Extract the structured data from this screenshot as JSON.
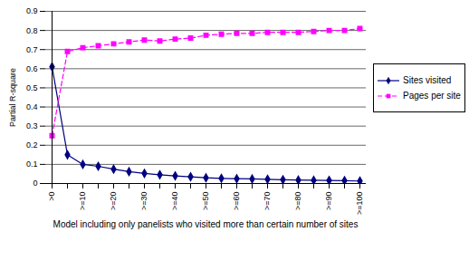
{
  "chart_data": {
    "type": "line",
    "x_label": "Model including only panelists who visited more than certain number of sites",
    "y_label": "Partial R-square",
    "categories": [
      ">0",
      null,
      ">=10",
      null,
      ">=20",
      null,
      ">=30",
      null,
      ">=40",
      null,
      ">=50",
      null,
      ">=60",
      null,
      ">=70",
      null,
      ">=80",
      null,
      ">=90",
      null,
      ">=100"
    ],
    "series": [
      {
        "name": "Sites visited",
        "color": "#000080",
        "marker": "diamond",
        "line_style": "solid",
        "values": [
          0.61,
          0.15,
          0.1,
          0.09,
          0.075,
          0.062,
          0.053,
          0.046,
          0.04,
          0.035,
          0.03,
          0.027,
          0.025,
          0.024,
          0.022,
          0.02,
          0.018,
          0.017,
          0.016,
          0.015,
          0.013
        ]
      },
      {
        "name": "Pages per site",
        "color": "#ff00ff",
        "marker": "square",
        "line_style": "dashed",
        "values": [
          0.25,
          0.69,
          0.71,
          0.72,
          0.73,
          0.74,
          0.75,
          0.745,
          0.755,
          0.76,
          0.775,
          0.78,
          0.785,
          0.785,
          0.79,
          0.79,
          0.79,
          0.795,
          0.8,
          0.8,
          0.81
        ]
      }
    ],
    "ylim": [
      0,
      0.9
    ],
    "yticks": [
      0,
      0.1,
      0.2,
      0.3,
      0.4,
      0.5,
      0.6,
      0.7,
      0.8,
      0.9
    ],
    "grid": true,
    "legend": "right"
  }
}
